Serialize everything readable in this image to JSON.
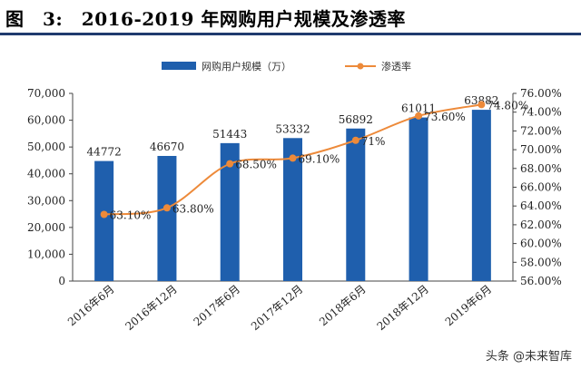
{
  "header": {
    "title": "图　3:　2016-2019 年网购用户规模及渗透率"
  },
  "watermark": "头条 @未来智库",
  "chart_data": {
    "type": "bar+line",
    "categories": [
      "2016年6月",
      "2016年12月",
      "2017年6月",
      "2017年12月",
      "2018年6月",
      "2018年12月",
      "2019年6月"
    ],
    "series": [
      {
        "name": "网购用户规模（万）",
        "type": "bar",
        "axis": "left",
        "values": [
          44772,
          46670,
          51443,
          53332,
          56892,
          61011,
          63882
        ],
        "labels": [
          "44772",
          "46670",
          "51443",
          "53332",
          "56892",
          "61011",
          "63882"
        ],
        "color": "#1f5fad"
      },
      {
        "name": "渗透率",
        "type": "line",
        "axis": "right",
        "values": [
          63.1,
          63.8,
          68.5,
          69.1,
          71.0,
          73.6,
          74.8
        ],
        "labels": [
          "63.10%",
          "63.80%",
          "68.50%",
          "69.10%",
          "71%",
          "73.60%",
          "74.80%"
        ],
        "color": "#ed8a3a"
      }
    ],
    "left_axis": {
      "ylim": [
        0,
        70000
      ],
      "ticks": [
        "0",
        "10,000",
        "20,000",
        "30,000",
        "40,000",
        "50,000",
        "60,000",
        "70,000"
      ]
    },
    "right_axis": {
      "ylim": [
        56,
        76
      ],
      "ticks": [
        "56.00%",
        "58.00%",
        "60.00%",
        "62.00%",
        "64.00%",
        "66.00%",
        "68.00%",
        "70.00%",
        "72.00%",
        "74.00%",
        "76.00%"
      ]
    },
    "legend_position": "top-center",
    "grid": false
  }
}
